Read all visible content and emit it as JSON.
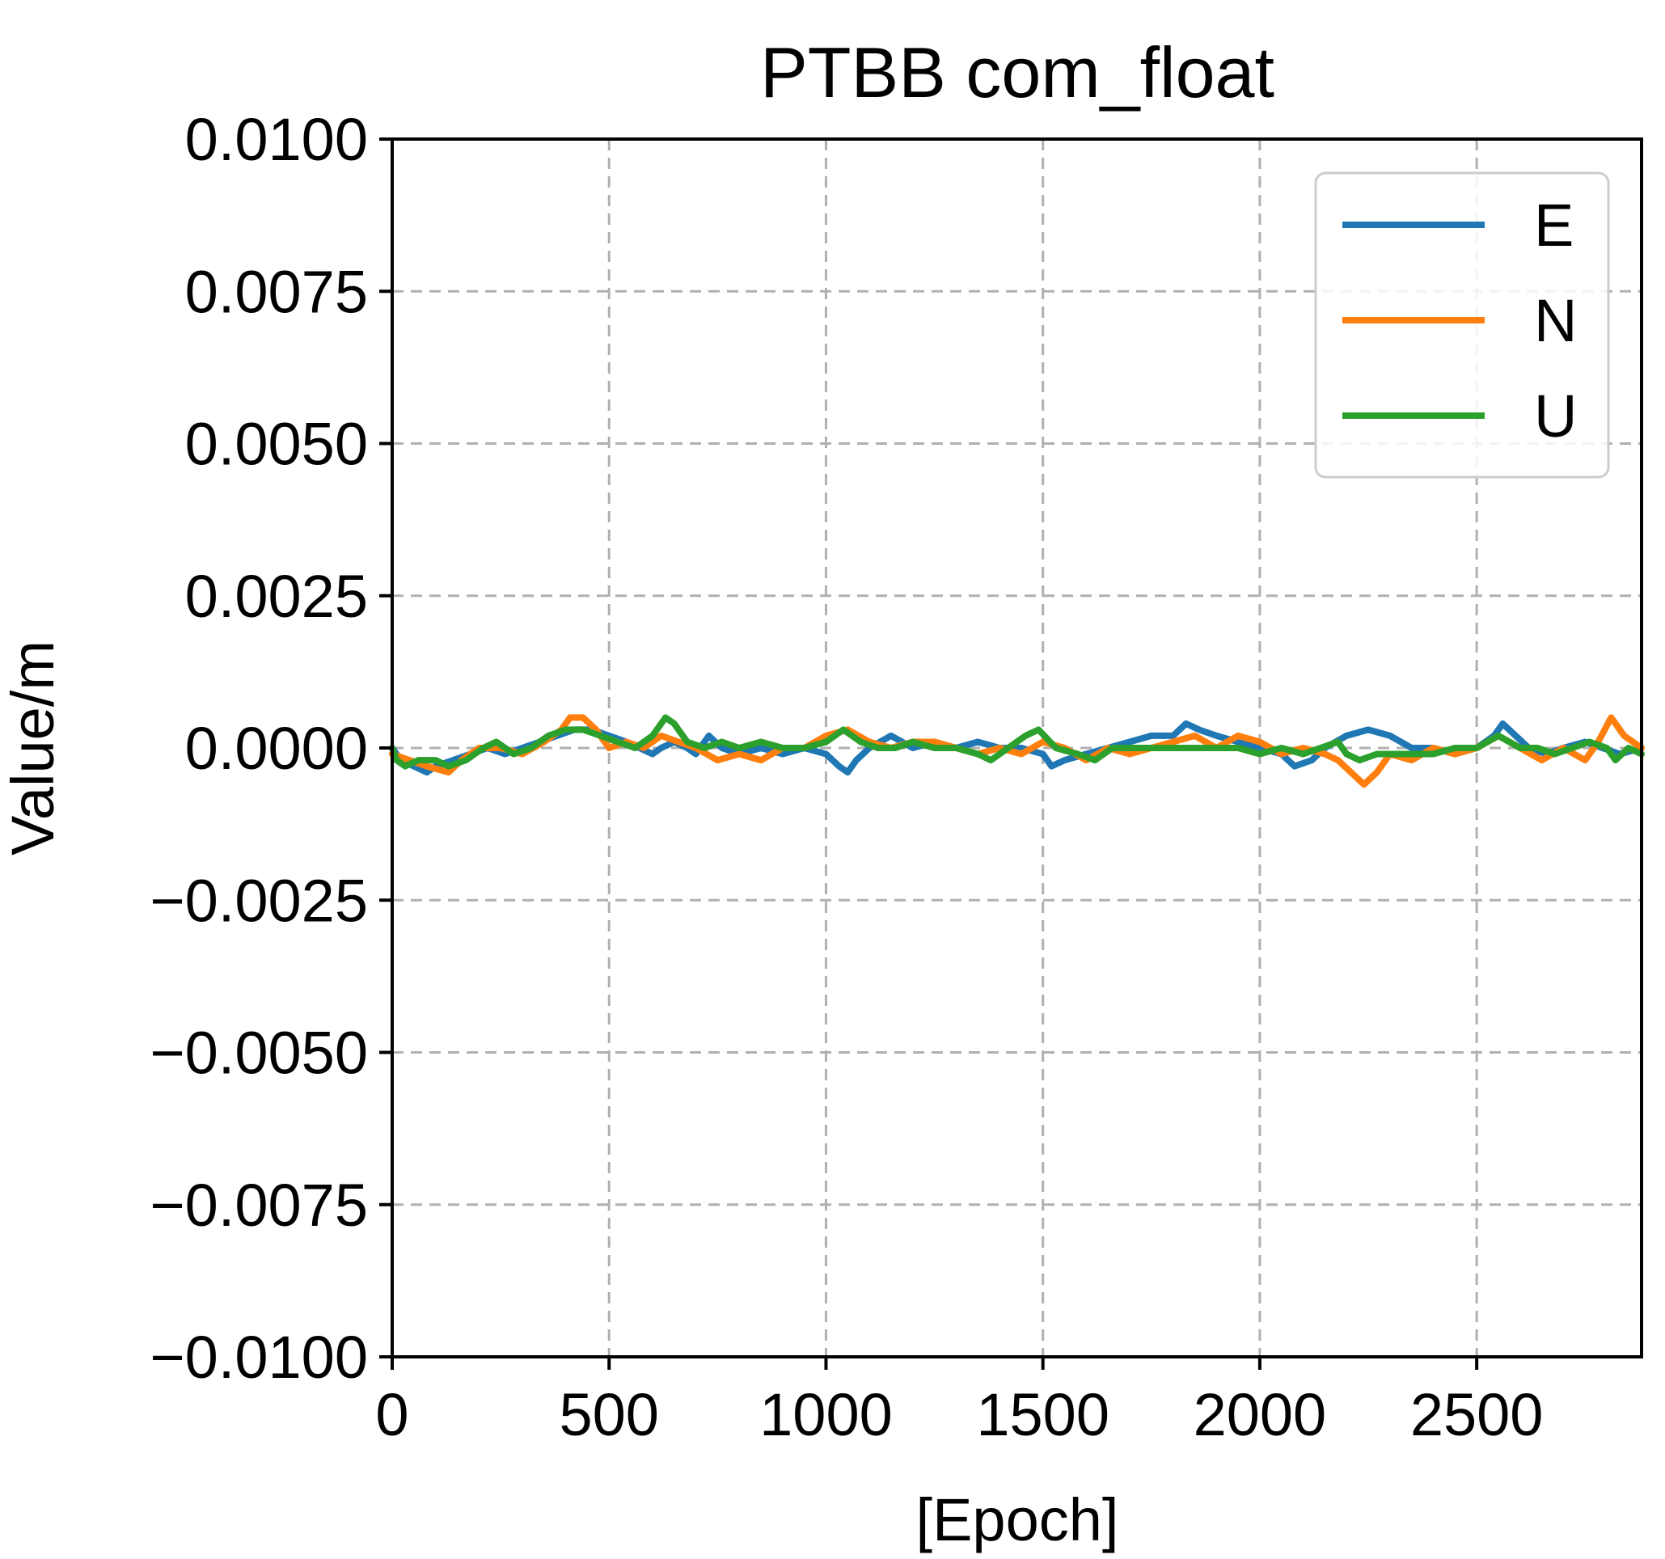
{
  "chart_data": {
    "type": "line",
    "title": "PTBB com_float",
    "xlabel": "[Epoch]",
    "ylabel": "Value/m",
    "xlim": [
      0,
      2880
    ],
    "ylim": [
      -0.01,
      0.01
    ],
    "xticks": [
      0,
      500,
      1000,
      1500,
      2000,
      2500
    ],
    "xtick_labels": [
      "0",
      "500",
      "1000",
      "1500",
      "2000",
      "2500"
    ],
    "yticks": [
      0.01,
      0.0075,
      0.005,
      0.0025,
      0.0,
      -0.0025,
      -0.005,
      -0.0075,
      -0.01
    ],
    "ytick_labels": [
      "0.0100",
      "0.0075",
      "0.0050",
      "0.0025",
      "0.0000",
      "−0.0025",
      "−0.0050",
      "−0.0075",
      "−0.0100"
    ],
    "grid": true,
    "legend_position": "top-right",
    "series": [
      {
        "name": "E",
        "color": "#1f77b4",
        "points": [
          [
            0,
            0.0
          ],
          [
            20,
            -0.0002
          ],
          [
            50,
            -0.0003
          ],
          [
            80,
            -0.0004
          ],
          [
            100,
            -0.0003
          ],
          [
            140,
            -0.0002
          ],
          [
            180,
            -0.0001
          ],
          [
            220,
            0.0
          ],
          [
            260,
            -0.0001
          ],
          [
            300,
            0.0
          ],
          [
            340,
            0.0001
          ],
          [
            380,
            0.0002
          ],
          [
            420,
            0.0003
          ],
          [
            460,
            0.0003
          ],
          [
            500,
            0.0002
          ],
          [
            540,
            0.0001
          ],
          [
            570,
            0.0
          ],
          [
            600,
            -0.0001
          ],
          [
            620,
            0.0
          ],
          [
            650,
            0.0001
          ],
          [
            680,
            0.0
          ],
          [
            700,
            -0.0001
          ],
          [
            730,
            0.0002
          ],
          [
            760,
            0.0
          ],
          [
            800,
            -0.0001
          ],
          [
            850,
            0.0
          ],
          [
            900,
            -0.0001
          ],
          [
            950,
            0.0
          ],
          [
            1000,
            -0.0001
          ],
          [
            1030,
            -0.0003
          ],
          [
            1050,
            -0.0004
          ],
          [
            1070,
            -0.0002
          ],
          [
            1100,
            0.0
          ],
          [
            1150,
            0.0002
          ],
          [
            1200,
            0.0
          ],
          [
            1250,
            0.0001
          ],
          [
            1300,
            0.0
          ],
          [
            1350,
            0.0001
          ],
          [
            1400,
            0.0
          ],
          [
            1450,
            0.0
          ],
          [
            1500,
            -0.0001
          ],
          [
            1520,
            -0.0003
          ],
          [
            1550,
            -0.0002
          ],
          [
            1600,
            -0.0001
          ],
          [
            1650,
            0.0
          ],
          [
            1700,
            0.0001
          ],
          [
            1750,
            0.0002
          ],
          [
            1800,
            0.0002
          ],
          [
            1830,
            0.0004
          ],
          [
            1860,
            0.0003
          ],
          [
            1900,
            0.0002
          ],
          [
            1950,
            0.0001
          ],
          [
            2000,
            0.0
          ],
          [
            2050,
            -0.0001
          ],
          [
            2080,
            -0.0003
          ],
          [
            2120,
            -0.0002
          ],
          [
            2150,
            0.0
          ],
          [
            2200,
            0.0002
          ],
          [
            2250,
            0.0003
          ],
          [
            2300,
            0.0002
          ],
          [
            2350,
            0.0
          ],
          [
            2400,
            0.0
          ],
          [
            2450,
            -0.0001
          ],
          [
            2500,
            0.0
          ],
          [
            2540,
            0.0002
          ],
          [
            2560,
            0.0004
          ],
          [
            2590,
            0.0002
          ],
          [
            2620,
            0.0
          ],
          [
            2660,
            -0.0001
          ],
          [
            2700,
            0.0
          ],
          [
            2750,
            0.0001
          ],
          [
            2790,
            0.0
          ],
          [
            2830,
            -0.0001
          ],
          [
            2880,
            0.0
          ]
        ]
      },
      {
        "name": "N",
        "color": "#ff7f0e",
        "points": [
          [
            0,
            -0.0001
          ],
          [
            40,
            -0.0002
          ],
          [
            80,
            -0.0003
          ],
          [
            130,
            -0.0004
          ],
          [
            160,
            -0.0002
          ],
          [
            200,
            0.0
          ],
          [
            250,
            0.0
          ],
          [
            300,
            -0.0001
          ],
          [
            350,
            0.0001
          ],
          [
            390,
            0.0003
          ],
          [
            410,
            0.0005
          ],
          [
            440,
            0.0005
          ],
          [
            470,
            0.0003
          ],
          [
            500,
            0.0
          ],
          [
            540,
            0.0001
          ],
          [
            580,
            0.0
          ],
          [
            620,
            0.0002
          ],
          [
            660,
            0.0001
          ],
          [
            700,
            0.0
          ],
          [
            750,
            -0.0002
          ],
          [
            800,
            -0.0001
          ],
          [
            850,
            -0.0002
          ],
          [
            900,
            0.0
          ],
          [
            950,
            0.0
          ],
          [
            1000,
            0.0002
          ],
          [
            1050,
            0.0003
          ],
          [
            1100,
            0.0001
          ],
          [
            1150,
            0.0
          ],
          [
            1200,
            0.0001
          ],
          [
            1250,
            0.0001
          ],
          [
            1300,
            0.0
          ],
          [
            1350,
            -0.0001
          ],
          [
            1400,
            0.0
          ],
          [
            1450,
            -0.0001
          ],
          [
            1500,
            0.0001
          ],
          [
            1550,
            0.0
          ],
          [
            1600,
            -0.0002
          ],
          [
            1650,
            0.0
          ],
          [
            1700,
            -0.0001
          ],
          [
            1750,
            0.0
          ],
          [
            1800,
            0.0001
          ],
          [
            1850,
            0.0002
          ],
          [
            1900,
            0.0
          ],
          [
            1950,
            0.0002
          ],
          [
            2000,
            0.0001
          ],
          [
            2050,
            -0.0001
          ],
          [
            2100,
            0.0
          ],
          [
            2150,
            -0.0001
          ],
          [
            2180,
            -0.0002
          ],
          [
            2210,
            -0.0004
          ],
          [
            2240,
            -0.0006
          ],
          [
            2270,
            -0.0004
          ],
          [
            2300,
            -0.0001
          ],
          [
            2350,
            -0.0002
          ],
          [
            2400,
            0.0
          ],
          [
            2450,
            -0.0001
          ],
          [
            2500,
            0.0
          ],
          [
            2550,
            0.0002
          ],
          [
            2600,
            0.0
          ],
          [
            2650,
            -0.0002
          ],
          [
            2700,
            0.0
          ],
          [
            2750,
            -0.0002
          ],
          [
            2780,
            0.0001
          ],
          [
            2810,
            0.0005
          ],
          [
            2840,
            0.0002
          ],
          [
            2880,
            0.0
          ]
        ]
      },
      {
        "name": "U",
        "color": "#2ca02c",
        "points": [
          [
            0,
            0.0
          ],
          [
            10,
            -0.0002
          ],
          [
            30,
            -0.0003
          ],
          [
            60,
            -0.0002
          ],
          [
            100,
            -0.0002
          ],
          [
            130,
            -0.0003
          ],
          [
            170,
            -0.0002
          ],
          [
            210,
            0.0
          ],
          [
            240,
            0.0001
          ],
          [
            280,
            -0.0001
          ],
          [
            320,
            0.0
          ],
          [
            360,
            0.0002
          ],
          [
            400,
            0.0003
          ],
          [
            440,
            0.0003
          ],
          [
            480,
            0.0002
          ],
          [
            520,
            0.0001
          ],
          [
            560,
            0.0
          ],
          [
            600,
            0.0002
          ],
          [
            630,
            0.0005
          ],
          [
            650,
            0.0004
          ],
          [
            680,
            0.0001
          ],
          [
            720,
            0.0
          ],
          [
            760,
            0.0001
          ],
          [
            800,
            0.0
          ],
          [
            850,
            0.0001
          ],
          [
            900,
            0.0
          ],
          [
            950,
            0.0
          ],
          [
            1000,
            0.0001
          ],
          [
            1040,
            0.0003
          ],
          [
            1080,
            0.0001
          ],
          [
            1120,
            0.0
          ],
          [
            1160,
            0.0
          ],
          [
            1200,
            0.0001
          ],
          [
            1250,
            0.0
          ],
          [
            1300,
            0.0
          ],
          [
            1350,
            -0.0001
          ],
          [
            1380,
            -0.0002
          ],
          [
            1420,
            0.0
          ],
          [
            1460,
            0.0002
          ],
          [
            1490,
            0.0003
          ],
          [
            1530,
            0.0
          ],
          [
            1580,
            -0.0001
          ],
          [
            1620,
            -0.0002
          ],
          [
            1660,
            0.0
          ],
          [
            1700,
            0.0
          ],
          [
            1750,
            0.0
          ],
          [
            1800,
            0.0
          ],
          [
            1850,
            0.0
          ],
          [
            1900,
            0.0
          ],
          [
            1950,
            0.0
          ],
          [
            2000,
            -0.0001
          ],
          [
            2050,
            0.0
          ],
          [
            2100,
            -0.0001
          ],
          [
            2140,
            0.0
          ],
          [
            2180,
            0.0001
          ],
          [
            2200,
            -0.0001
          ],
          [
            2230,
            -0.0002
          ],
          [
            2270,
            -0.0001
          ],
          [
            2300,
            -0.0001
          ],
          [
            2350,
            -0.0001
          ],
          [
            2400,
            -0.0001
          ],
          [
            2450,
            0.0
          ],
          [
            2500,
            0.0
          ],
          [
            2550,
            0.0002
          ],
          [
            2600,
            0.0
          ],
          [
            2640,
            0.0
          ],
          [
            2680,
            -0.0001
          ],
          [
            2720,
            0.0
          ],
          [
            2760,
            0.0001
          ],
          [
            2800,
            0.0
          ],
          [
            2820,
            -0.0002
          ],
          [
            2850,
            0.0
          ],
          [
            2880,
            -0.0001
          ]
        ]
      }
    ]
  }
}
